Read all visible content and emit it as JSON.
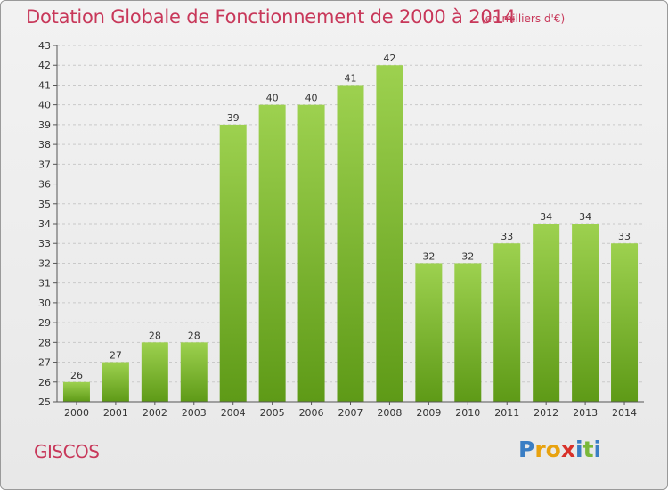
{
  "header": {
    "title": "Dotation Globale de Fonctionnement de 2000 à 2014",
    "subtitle": "(en milliers d'€)"
  },
  "footer": {
    "commune": "GISCOS",
    "brand": [
      "P",
      "r",
      "o",
      "x",
      "i",
      "t",
      "i"
    ]
  },
  "colors": {
    "title": "#c8385a",
    "bar_top": "#9dd14f",
    "bar_bottom": "#5e9a17",
    "grid": "#c9c9c9",
    "brand": [
      "#3a7ec4",
      "#e8a20f",
      "#e8a20f",
      "#d8312a",
      "#3a7ec4",
      "#7ab83a",
      "#3a7ec4"
    ]
  },
  "chart_data": {
    "type": "bar",
    "title": "Dotation Globale de Fonctionnement de 2000 à 2014",
    "subtitle": "(en milliers d'€)",
    "xlabel": "",
    "ylabel": "",
    "categories": [
      "2000",
      "2001",
      "2002",
      "2003",
      "2004",
      "2005",
      "2006",
      "2007",
      "2008",
      "2009",
      "2010",
      "2011",
      "2012",
      "2013",
      "2014"
    ],
    "values": [
      26,
      27,
      28,
      28,
      39,
      40,
      40,
      41,
      42,
      32,
      32,
      33,
      34,
      34,
      33
    ],
    "ylim": [
      25,
      43
    ],
    "yticks": [
      25,
      26,
      27,
      28,
      29,
      30,
      31,
      32,
      33,
      34,
      35,
      36,
      37,
      38,
      39,
      40,
      41,
      42,
      43
    ],
    "grid": "horizontal dashed",
    "legend": "none",
    "data_labels": true
  }
}
